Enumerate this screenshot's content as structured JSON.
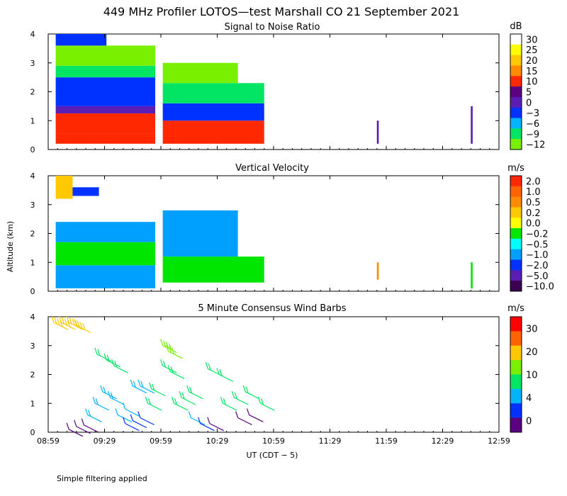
{
  "figure": {
    "title": "449 MHz Profiler LOTOS—test Marshall CO 21 September 2021",
    "xlabel": "UT  (CDT − 5)",
    "ylabel": "Altitude (km)",
    "footnote": "Simple filtering applied",
    "x_ticks": [
      "08:59",
      "09:29",
      "09:59",
      "10:29",
      "10:59",
      "11:29",
      "11:59",
      "12:29",
      "12:59"
    ],
    "y_ticks": [
      "0",
      "1",
      "2",
      "3",
      "4"
    ]
  },
  "chart_data": [
    {
      "type": "heatmap",
      "title": "Signal to Noise Ratio",
      "colorbar": {
        "unit": "dB",
        "ticks": [
          "30",
          "25",
          "20",
          "15",
          "10",
          "5",
          "0",
          "−3",
          "−6",
          "−9",
          "−12"
        ],
        "colors": [
          "#ffffff",
          "#ffff00",
          "#ffc800",
          "#ff8c00",
          "#ff2800",
          "#5a0080",
          "#5a1eb4",
          "#0032ff",
          "#00b4ff",
          "#00e664",
          "#78f000"
        ]
      },
      "x_range": [
        "08:59",
        "12:59"
      ],
      "y_range": [
        0,
        4
      ],
      "bands": [
        {
          "from": "09:03",
          "to": "09:56",
          "low": 0.2,
          "high": 0.55,
          "color": "#ff2800"
        },
        {
          "from": "09:03",
          "to": "09:56",
          "low": 0.55,
          "high": 1.25,
          "color": "#ff2800"
        },
        {
          "from": "09:03",
          "to": "09:56",
          "low": 1.25,
          "high": 1.5,
          "color": "#5a1eb4"
        },
        {
          "from": "09:03",
          "to": "09:56",
          "low": 1.5,
          "high": 2.5,
          "color": "#0032ff"
        },
        {
          "from": "09:03",
          "to": "09:56",
          "low": 2.5,
          "high": 2.9,
          "color": "#00e664"
        },
        {
          "from": "09:03",
          "to": "09:56",
          "low": 2.9,
          "high": 3.6,
          "color": "#78f000"
        },
        {
          "from": "09:03",
          "to": "09:30",
          "low": 3.6,
          "high": 4.0,
          "color": "#0032ff"
        },
        {
          "from": "10:00",
          "to": "10:54",
          "low": 0.2,
          "high": 1.0,
          "color": "#ff2800"
        },
        {
          "from": "10:00",
          "to": "10:54",
          "low": 1.0,
          "high": 1.6,
          "color": "#0032ff"
        },
        {
          "from": "10:00",
          "to": "10:54",
          "low": 1.6,
          "high": 2.3,
          "color": "#00e664"
        },
        {
          "from": "10:00",
          "to": "10:40",
          "low": 2.3,
          "high": 3.0,
          "color": "#78f000"
        },
        {
          "from": "11:54",
          "to": "11:55",
          "low": 0.2,
          "high": 1.0,
          "color": "#5a1eb4"
        },
        {
          "from": "12:44",
          "to": "12:45",
          "low": 0.2,
          "high": 1.5,
          "color": "#5a1eb4"
        }
      ]
    },
    {
      "type": "heatmap",
      "title": "Vertical Velocity",
      "colorbar": {
        "unit": "m/s",
        "ticks": [
          "2.0",
          "1.0",
          "0.5",
          "0.2",
          "0.0",
          "−0.2",
          "−0.5",
          "−1.0",
          "−2.0",
          "−5.0",
          "−10.0"
        ],
        "colors": [
          "#ff2800",
          "#ff6400",
          "#ff8c00",
          "#ffc800",
          "#ffff00",
          "#00e600",
          "#00ffff",
          "#00a0ff",
          "#0032ff",
          "#5a1eb4",
          "#3c0050"
        ]
      },
      "x_range": [
        "08:59",
        "12:59"
      ],
      "y_range": [
        0,
        4
      ],
      "bands": [
        {
          "from": "09:03",
          "to": "09:56",
          "low": 0.1,
          "high": 0.9,
          "color": "#00a0ff"
        },
        {
          "from": "09:03",
          "to": "09:56",
          "low": 0.9,
          "high": 1.7,
          "color": "#00e600"
        },
        {
          "from": "09:03",
          "to": "09:56",
          "low": 1.7,
          "high": 2.4,
          "color": "#00a0ff"
        },
        {
          "from": "09:03",
          "to": "09:12",
          "low": 3.2,
          "high": 4.0,
          "color": "#ffc800"
        },
        {
          "from": "09:12",
          "to": "09:26",
          "low": 3.3,
          "high": 3.6,
          "color": "#0032ff"
        },
        {
          "from": "10:00",
          "to": "10:54",
          "low": 0.3,
          "high": 1.2,
          "color": "#00e600"
        },
        {
          "from": "10:00",
          "to": "10:40",
          "low": 1.2,
          "high": 2.8,
          "color": "#00a0ff"
        },
        {
          "from": "11:54",
          "to": "11:55",
          "low": 0.4,
          "high": 1.0,
          "color": "#ff8c00"
        },
        {
          "from": "12:44",
          "to": "12:45",
          "low": 0.1,
          "high": 1.0,
          "color": "#00e600"
        }
      ]
    },
    {
      "type": "wind_barbs",
      "title": "5 Minute Consensus Wind Barbs",
      "colorbar": {
        "unit": "m/s",
        "ticks": [
          "30",
          "20",
          "10",
          "4",
          "0"
        ],
        "colors": [
          "#ff0000",
          "#ff6400",
          "#ffc800",
          "#78f000",
          "#00e664",
          "#00b4ff",
          "#0032ff",
          "#5a0080"
        ]
      },
      "x_range": [
        "08:59",
        "12:59"
      ],
      "y_range": [
        0,
        4
      ],
      "barbs": [
        {
          "time": "09:02",
          "alt": 3.8,
          "speed": 22
        },
        {
          "time": "09:06",
          "alt": 3.8,
          "speed": 22
        },
        {
          "time": "09:10",
          "alt": 3.8,
          "speed": 22
        },
        {
          "time": "09:14",
          "alt": 3.7,
          "speed": 22
        },
        {
          "time": "09:10",
          "alt": 0.1,
          "speed": 3
        },
        {
          "time": "09:14",
          "alt": 0.2,
          "speed": 3
        },
        {
          "time": "09:18",
          "alt": 0.25,
          "speed": 3
        },
        {
          "time": "09:20",
          "alt": 0.6,
          "speed": 8
        },
        {
          "time": "09:24",
          "alt": 1.0,
          "speed": 8
        },
        {
          "time": "09:28",
          "alt": 1.4,
          "speed": 8
        },
        {
          "time": "09:32",
          "alt": 1.2,
          "speed": 8
        },
        {
          "time": "09:25",
          "alt": 2.7,
          "speed": 12
        },
        {
          "time": "09:30",
          "alt": 2.5,
          "speed": 12
        },
        {
          "time": "09:34",
          "alt": 2.3,
          "speed": 12
        },
        {
          "time": "09:36",
          "alt": 0.6,
          "speed": 6
        },
        {
          "time": "09:40",
          "alt": 0.8,
          "speed": 6
        },
        {
          "time": "09:44",
          "alt": 1.6,
          "speed": 8
        },
        {
          "time": "09:48",
          "alt": 1.6,
          "speed": 8
        },
        {
          "time": "09:40",
          "alt": 0.3,
          "speed": 5
        },
        {
          "time": "09:44",
          "alt": 0.4,
          "speed": 5
        },
        {
          "time": "09:48",
          "alt": 0.5,
          "speed": 4
        },
        {
          "time": "09:52",
          "alt": 1.0,
          "speed": 9
        },
        {
          "time": "09:54",
          "alt": 1.5,
          "speed": 9
        },
        {
          "time": "10:00",
          "alt": 3.0,
          "speed": 18
        },
        {
          "time": "10:03",
          "alt": 2.8,
          "speed": 16
        },
        {
          "time": "10:00",
          "alt": 2.3,
          "speed": 12
        },
        {
          "time": "10:04",
          "alt": 2.1,
          "speed": 12
        },
        {
          "time": "10:06",
          "alt": 1.0,
          "speed": 9
        },
        {
          "time": "10:10",
          "alt": 1.2,
          "speed": 9
        },
        {
          "time": "10:14",
          "alt": 1.4,
          "speed": 9
        },
        {
          "time": "10:15",
          "alt": 0.5,
          "speed": 6
        },
        {
          "time": "10:20",
          "alt": 0.3,
          "speed": 4
        },
        {
          "time": "10:25",
          "alt": 0.3,
          "speed": 3
        },
        {
          "time": "10:24",
          "alt": 2.2,
          "speed": 12
        },
        {
          "time": "10:30",
          "alt": 2.0,
          "speed": 12
        },
        {
          "time": "10:32",
          "alt": 1.0,
          "speed": 9
        },
        {
          "time": "10:38",
          "alt": 1.2,
          "speed": 9
        },
        {
          "time": "10:44",
          "alt": 1.4,
          "speed": 9
        },
        {
          "time": "10:40",
          "alt": 0.5,
          "speed": 3
        },
        {
          "time": "10:46",
          "alt": 0.6,
          "speed": 3
        },
        {
          "time": "10:52",
          "alt": 1.0,
          "speed": 9
        }
      ]
    }
  ]
}
